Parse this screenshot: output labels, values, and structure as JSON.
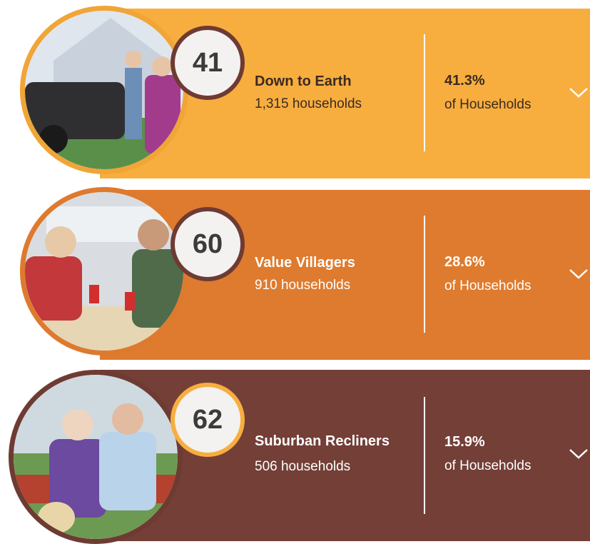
{
  "segments": [
    {
      "number": "41",
      "name": "Down to Earth",
      "households": "1,315 households",
      "percent": "41.3%",
      "of": "of Households"
    },
    {
      "number": "60",
      "name": "Value Villagers",
      "households": "910 households",
      "percent": "28.6%",
      "of": "of Households"
    },
    {
      "number": "62",
      "name": "Suburban Recliners",
      "households": "506 households",
      "percent": "15.9%",
      "of": "of Households"
    }
  ]
}
